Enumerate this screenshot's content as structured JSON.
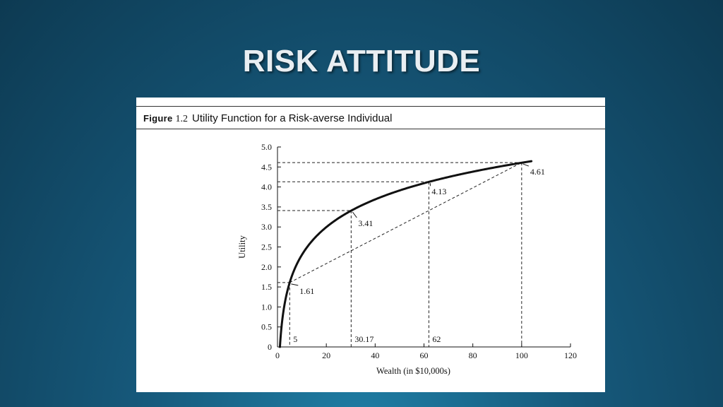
{
  "slide": {
    "title": "RISK ATTITUDE"
  },
  "figure": {
    "label": "Figure",
    "number": "1.2",
    "caption": "Utility Function for a Risk-averse Individual"
  },
  "chart_data": {
    "type": "line",
    "title": "",
    "xlabel": "Wealth (in $10,000s)",
    "ylabel": "Utility",
    "xlim": [
      0,
      120
    ],
    "ylim": [
      0,
      5.0
    ],
    "x_ticks": [
      0,
      20,
      40,
      60,
      80,
      100,
      120
    ],
    "x_tick_labels": [
      "0",
      "20",
      "40",
      "60",
      "80",
      "100",
      "120"
    ],
    "y_ticks": [
      0,
      0.5,
      1.0,
      1.5,
      2.0,
      2.5,
      3.0,
      3.5,
      4.0,
      4.5,
      5.0
    ],
    "y_tick_labels": [
      "0",
      "0.5",
      "1.0",
      "1.5",
      "2.0",
      "2.5",
      "3.0",
      "3.5",
      "4.0",
      "4.5",
      "5.0"
    ],
    "grid": false,
    "series": [
      {
        "function": "ln(x)",
        "x_range": [
          1,
          104
        ]
      }
    ],
    "chord": {
      "from": [
        5,
        1.61
      ],
      "to": [
        100,
        4.61
      ]
    },
    "reference_points": [
      {
        "x": 5,
        "y": 1.61,
        "x_label": "5",
        "y_label": "1.61"
      },
      {
        "x": 30.17,
        "y": 3.41,
        "x_label": "30.17",
        "y_label": "3.41"
      },
      {
        "x": 62,
        "y": 4.13,
        "x_label": "62",
        "y_label": "4.13"
      },
      {
        "x": 100,
        "y": 4.61,
        "x_label": "",
        "y_label": "4.61"
      }
    ]
  }
}
